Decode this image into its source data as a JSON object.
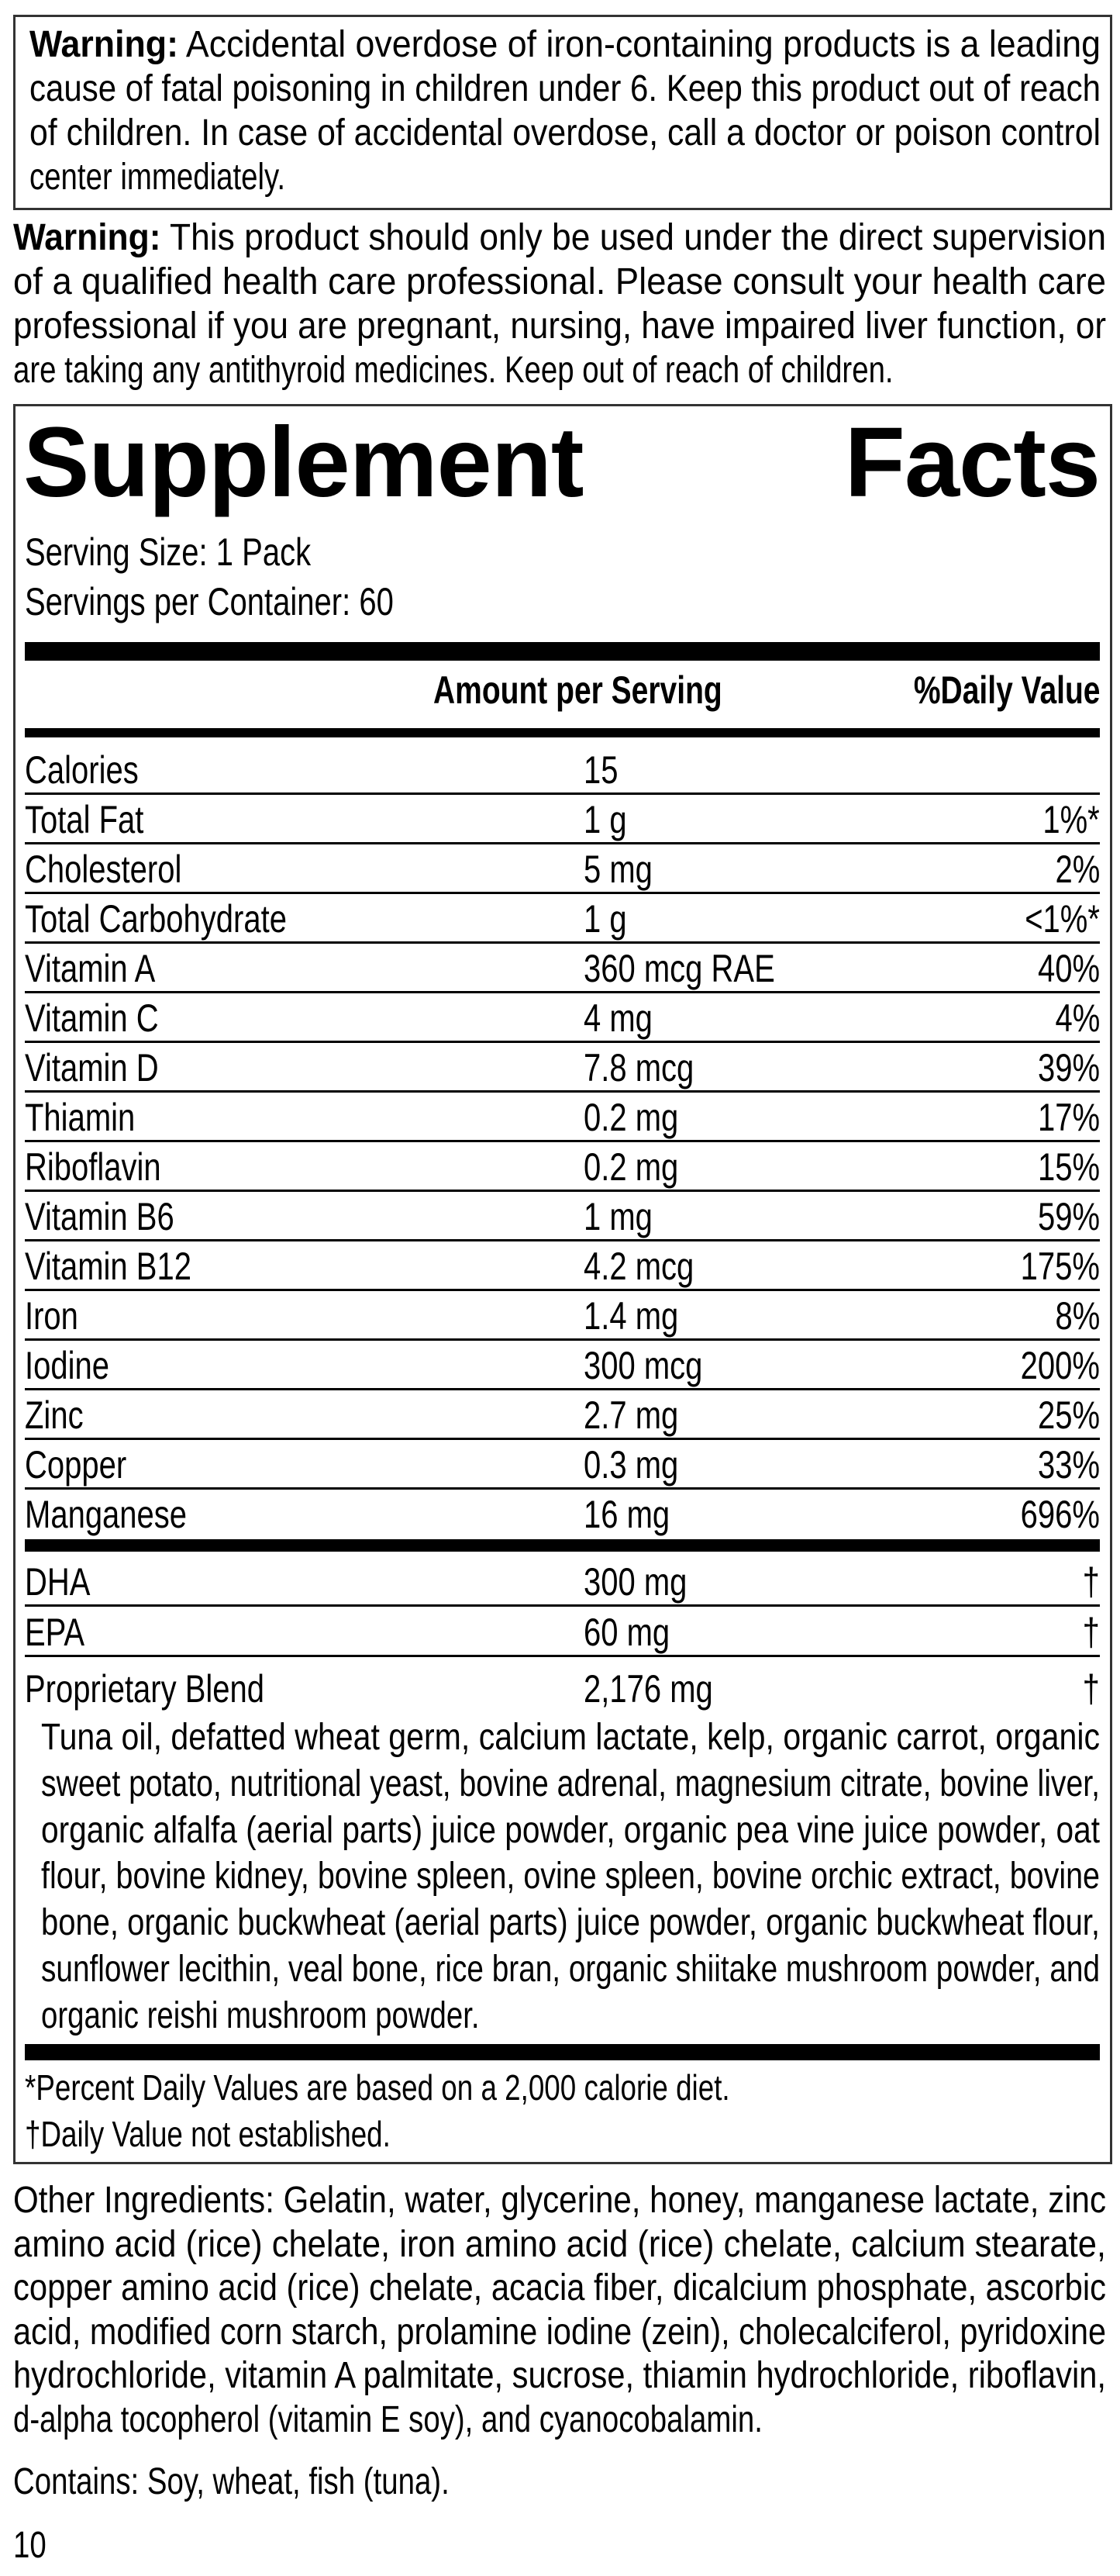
{
  "warning1": {
    "label": "Warning:",
    "lines": [
      " Accidental overdose of iron-containing products is a leading",
      "cause of fatal poisoning in children under 6. Keep this product out of reach",
      "of children. In case of accidental overdose, call a doctor or poison control",
      "center immediately."
    ]
  },
  "warning2": {
    "label": "Warning:",
    "lines": [
      " This product should only be used under the direct supervision",
      "of a qualified health care professional. Please consult your health care",
      "professional if you are pregnant, nursing, have impaired liver function, or",
      "are taking any antithyroid medicines. Keep out of reach of children."
    ]
  },
  "facts": {
    "title_word1": "Supplement",
    "title_word2": "Facts",
    "serving_size": "Serving Size: 1 Pack",
    "servings_per_container": "Servings per Container: 60",
    "header_amount": "Amount per Serving",
    "header_dv": "%Daily Value",
    "nutrients": [
      {
        "name": "Calories",
        "amount": "15",
        "dv": ""
      },
      {
        "name": "Total Fat",
        "amount": "1 g",
        "dv": "1%*"
      },
      {
        "name": "Cholesterol",
        "amount": "5 mg",
        "dv": "2%"
      },
      {
        "name": "Total Carbohydrate",
        "amount": "1 g",
        "dv": "<1%*"
      },
      {
        "name": "Vitamin A",
        "amount": "360 mcg RAE",
        "dv": "40%"
      },
      {
        "name": "Vitamin C",
        "amount": "4 mg",
        "dv": "4%"
      },
      {
        "name": "Vitamin D",
        "amount": "7.8 mcg",
        "dv": "39%"
      },
      {
        "name": "Thiamin",
        "amount": "0.2 mg",
        "dv": "17%"
      },
      {
        "name": "Riboflavin",
        "amount": "0.2 mg",
        "dv": "15%"
      },
      {
        "name": "Vitamin B6",
        "amount": "1 mg",
        "dv": "59%"
      },
      {
        "name": "Vitamin B12",
        "amount": "4.2 mcg",
        "dv": "175%"
      },
      {
        "name": "Iron",
        "amount": "1.4 mg",
        "dv": "8%"
      },
      {
        "name": "Iodine",
        "amount": "300 mcg",
        "dv": "200%"
      },
      {
        "name": "Zinc",
        "amount": "2.7 mg",
        "dv": "25%"
      },
      {
        "name": "Copper",
        "amount": "0.3 mg",
        "dv": "33%"
      },
      {
        "name": "Manganese",
        "amount": "16 mg",
        "dv": "696%"
      }
    ],
    "other_nutrients": [
      {
        "name": "DHA",
        "amount": "300 mg",
        "dv": "†"
      },
      {
        "name": "EPA",
        "amount": "60 mg",
        "dv": "†"
      },
      {
        "name": "Proprietary Blend",
        "amount": "2,176 mg",
        "dv": "†"
      }
    ],
    "blend_lines": [
      "Tuna oil, defatted wheat germ, calcium lactate, kelp, organic carrot, organic",
      "sweet potato, nutritional yeast, bovine adrenal, magnesium citrate, bovine liver,",
      "organic alfalfa (aerial parts) juice powder, organic pea vine juice powder, oat",
      "flour, bovine kidney, bovine spleen, ovine spleen, bovine orchic extract, bovine",
      "bone, organic buckwheat (aerial parts) juice powder, organic buckwheat flour,",
      "sunflower lecithin, veal bone, rice bran, organic shiitake mushroom powder, and",
      "organic reishi mushroom powder."
    ],
    "footnote_dv": "*Percent Daily Values are based on a 2,000 calorie diet.",
    "footnote_dagger": "†Daily Value not established."
  },
  "other_ingredients": {
    "lines": [
      "Other Ingredients: Gelatin, water, glycerine, honey, manganese lactate, zinc",
      "amino acid (rice) chelate, iron amino acid (rice) chelate, calcium stearate,",
      "copper amino acid (rice) chelate, acacia fiber, dicalcium phosphate, ascorbic",
      "acid, modified corn starch, prolamine iodine (zein), cholecalciferol, pyridoxine",
      "hydrochloride, vitamin A palmitate, sucrose, thiamin hydrochloride, riboflavin,",
      "d-alpha tocopherol (vitamin E soy), and cyanocobalamin."
    ]
  },
  "contains": "Contains: Soy, wheat, fish (tuna).",
  "page_number": "10"
}
